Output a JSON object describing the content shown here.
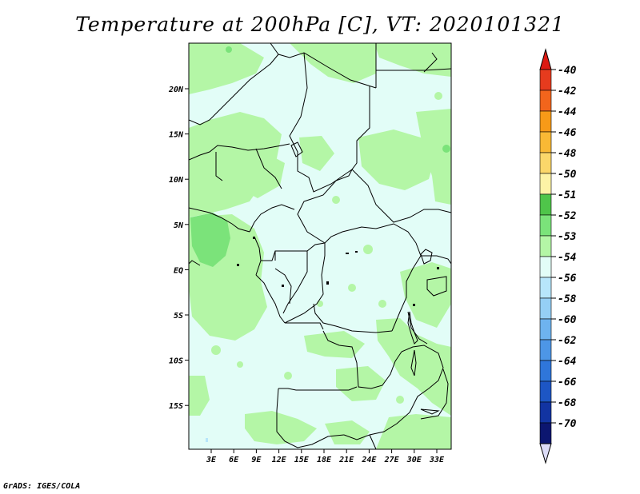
{
  "title": "Temperature at 200hPa [C], VT: 2020101321",
  "credit": "GrADS: IGES/COLA",
  "map": {
    "lon_labels": [
      "3E",
      "6E",
      "9E",
      "12E",
      "15E",
      "18E",
      "21E",
      "24E",
      "27E",
      "30E",
      "33E"
    ],
    "lat_labels": [
      "20N",
      "15N",
      "10N",
      "5N",
      "EQ",
      "5S",
      "10S",
      "15S"
    ]
  },
  "legend": {
    "labels": [
      "-40",
      "-42",
      "-44",
      "-46",
      "-48",
      "-50",
      "-51",
      "-52",
      "-53",
      "-54",
      "-56",
      "-58",
      "-60",
      "-62",
      "-64",
      "-66",
      "-68",
      "-70"
    ],
    "colors": [
      "#e63b1e",
      "#f2651c",
      "#f79a18",
      "#f9b935",
      "#fbd76a",
      "#fdf3a6",
      "#4fc54a",
      "#7be37a",
      "#b4f6a6",
      "#e2fdf7",
      "#b7e6fb",
      "#95cff5",
      "#6eb3ef",
      "#4d96e6",
      "#2f76da",
      "#1d56c4",
      "#1234a2",
      "#0c1670"
    ],
    "top_arrow_color": "#dd1a12",
    "bottom_arrow_color": "#dcdcf7"
  }
}
